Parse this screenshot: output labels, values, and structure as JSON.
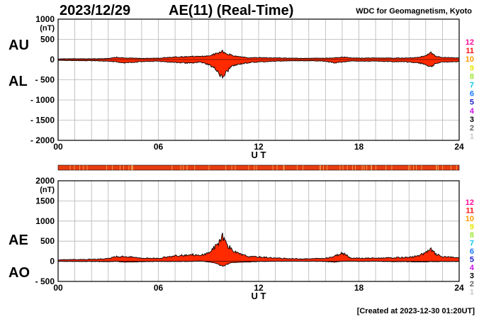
{
  "header": {
    "date": "2023/12/29",
    "title": "AE(11) (Real-Time)",
    "source": "WDC for Geomagnetism, Kyoto"
  },
  "footer": {
    "created": "[Created at 2023-12-30 01:20UT]"
  },
  "colors": {
    "fill": "#ff2a00",
    "outline": "#000000",
    "grid": "#b4b4b4",
    "band": "#e63c10",
    "band_stripe": "#f2c060"
  },
  "station_counts": {
    "labels": [
      "12",
      "11",
      "10",
      "9",
      "8",
      "7",
      "6",
      "5",
      "4",
      "3",
      "2",
      "1"
    ],
    "colors": [
      "#ff0a9a",
      "#ff1414",
      "#ff9c00",
      "#e6e600",
      "#9ce632",
      "#14c8e6",
      "#1478ff",
      "#1e1ec8",
      "#c814e6",
      "#000000",
      "#646464",
      "#c8c8c8"
    ]
  },
  "chart_data": [
    {
      "type": "area",
      "panel": "AU/AL",
      "labels_left": [
        "AU",
        "AL"
      ],
      "xlabel": "U T",
      "ylabel_unit": "(nT)",
      "xlim": [
        0,
        24
      ],
      "x_ticks": [
        "00",
        "06",
        "12",
        "18",
        "24"
      ],
      "ylim": [
        -2000,
        1000
      ],
      "y_ticks": [
        "1000",
        "500",
        "0",
        "- 500",
        "- 1000",
        "- 1500",
        "- 2000"
      ],
      "grid": true,
      "series": [
        {
          "id": "AU",
          "x": [
            0,
            1,
            2,
            3,
            3.5,
            4,
            5,
            6,
            7,
            7.5,
            8,
            8.5,
            9,
            9.5,
            9.8,
            10,
            10.3,
            10.6,
            11,
            11.5,
            12,
            12.5,
            13,
            14,
            15,
            16,
            16.5,
            17,
            17.5,
            18,
            19,
            20,
            21,
            21.5,
            22,
            22.3,
            22.6,
            23,
            24
          ],
          "values": [
            15,
            20,
            18,
            25,
            55,
            40,
            30,
            35,
            60,
            70,
            80,
            75,
            90,
            150,
            210,
            150,
            120,
            80,
            60,
            40,
            50,
            45,
            40,
            35,
            30,
            35,
            40,
            60,
            45,
            35,
            40,
            35,
            40,
            50,
            90,
            170,
            80,
            50,
            40
          ]
        },
        {
          "id": "AL",
          "x": [
            0,
            1,
            2,
            3,
            3.5,
            4,
            5,
            6,
            7,
            7.5,
            8,
            8.5,
            9,
            9.5,
            9.8,
            10,
            10.3,
            10.6,
            11,
            11.5,
            12,
            12.5,
            13,
            14,
            15,
            16,
            16.5,
            17,
            17.5,
            18,
            19,
            20,
            21,
            21.5,
            22,
            22.3,
            22.6,
            23,
            24
          ],
          "values": [
            -20,
            -25,
            -30,
            -40,
            -60,
            -80,
            -50,
            -40,
            -70,
            -80,
            -90,
            -60,
            -120,
            -250,
            -450,
            -350,
            -200,
            -140,
            -100,
            -70,
            -60,
            -50,
            -40,
            -30,
            -30,
            -40,
            -80,
            -60,
            -40,
            -40,
            -40,
            -50,
            -60,
            -80,
            -120,
            -180,
            -100,
            -60,
            -50
          ]
        }
      ]
    },
    {
      "type": "area",
      "panel": "AE/AO",
      "labels_left": [
        "AE",
        "AO"
      ],
      "xlabel": "U T",
      "ylabel_unit": "(nT)",
      "xlim": [
        0,
        24
      ],
      "x_ticks": [
        "00",
        "06",
        "12",
        "18",
        "24"
      ],
      "ylim": [
        -500,
        2000
      ],
      "y_ticks": [
        "2000",
        "1500",
        "1000",
        "500",
        "0",
        "- 500"
      ],
      "grid": true,
      "series": [
        {
          "id": "AE",
          "x": [
            0,
            1,
            2,
            3,
            3.5,
            4,
            5,
            6,
            7,
            7.5,
            8,
            8.5,
            9,
            9.5,
            9.8,
            10,
            10.3,
            10.6,
            11,
            11.5,
            12,
            12.5,
            13,
            14,
            15,
            16,
            16.5,
            17,
            17.5,
            18,
            19,
            20,
            21,
            21.5,
            22,
            22.3,
            22.6,
            23,
            24
          ],
          "values": [
            35,
            45,
            50,
            65,
            115,
            120,
            80,
            75,
            130,
            150,
            170,
            135,
            210,
            400,
            630,
            500,
            320,
            220,
            160,
            110,
            110,
            95,
            80,
            65,
            60,
            75,
            120,
            210,
            85,
            75,
            80,
            85,
            100,
            130,
            210,
            300,
            180,
            110,
            90
          ]
        },
        {
          "id": "AO",
          "x": [
            0,
            1,
            2,
            3,
            3.5,
            4,
            5,
            6,
            7,
            7.5,
            8,
            8.5,
            9,
            9.5,
            9.8,
            10,
            10.3,
            10.6,
            11,
            11.5,
            12,
            12.5,
            13,
            14,
            15,
            16,
            16.5,
            17,
            17.5,
            18,
            19,
            20,
            21,
            21.5,
            22,
            22.3,
            22.6,
            23,
            24
          ],
          "values": [
            -3,
            -3,
            -6,
            -8,
            -3,
            -20,
            -10,
            -3,
            -5,
            -5,
            -5,
            8,
            -15,
            -50,
            -120,
            -100,
            -40,
            -30,
            -20,
            -15,
            -5,
            -3,
            0,
            3,
            0,
            -3,
            -20,
            0,
            3,
            -3,
            0,
            -8,
            -10,
            -15,
            -15,
            -5,
            -10,
            -5,
            -5
          ]
        }
      ]
    }
  ]
}
